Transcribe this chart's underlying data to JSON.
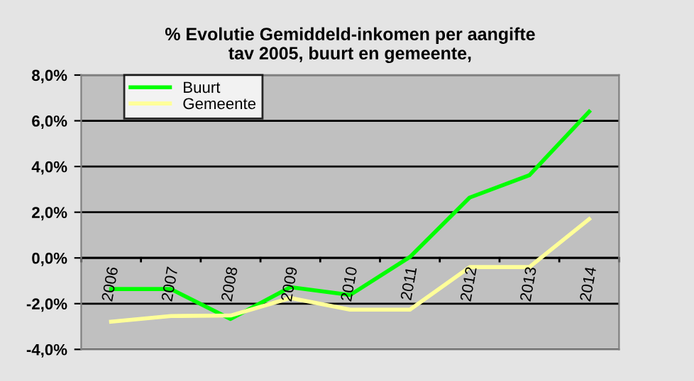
{
  "chart_data": {
    "type": "line",
    "title": "% Evolutie Gemiddeld-inkomen per aangifte\ntav 2005, buurt en gemeente,",
    "categories": [
      "2006",
      "2007",
      "2008",
      "2009",
      "2010",
      "2011",
      "2012",
      "2013",
      "2014"
    ],
    "series": [
      {
        "name": "Buurt",
        "color": "#00ff00",
        "values": [
          -1.36,
          -1.36,
          -2.67,
          -1.28,
          -1.62,
          0.04,
          2.64,
          3.62,
          6.4
        ]
      },
      {
        "name": "Gemeente",
        "color": "#ffff99",
        "values": [
          -2.79,
          -2.54,
          -2.52,
          -1.75,
          -2.26,
          -2.26,
          -0.4,
          -0.4,
          1.7
        ]
      }
    ],
    "ylim": [
      -4,
      8
    ],
    "yticks": [
      {
        "value": -4,
        "label": "-4,0%"
      },
      {
        "value": -2,
        "label": "-2,0%"
      },
      {
        "value": 0,
        "label": "0,0%"
      },
      {
        "value": 2,
        "label": "2,0%"
      },
      {
        "value": 4,
        "label": "4,0%"
      },
      {
        "value": 6,
        "label": "6,0%"
      },
      {
        "value": 8,
        "label": "8,0%"
      }
    ],
    "grid": "y",
    "legend": "top left",
    "marker": "none",
    "line_style": "solid"
  }
}
